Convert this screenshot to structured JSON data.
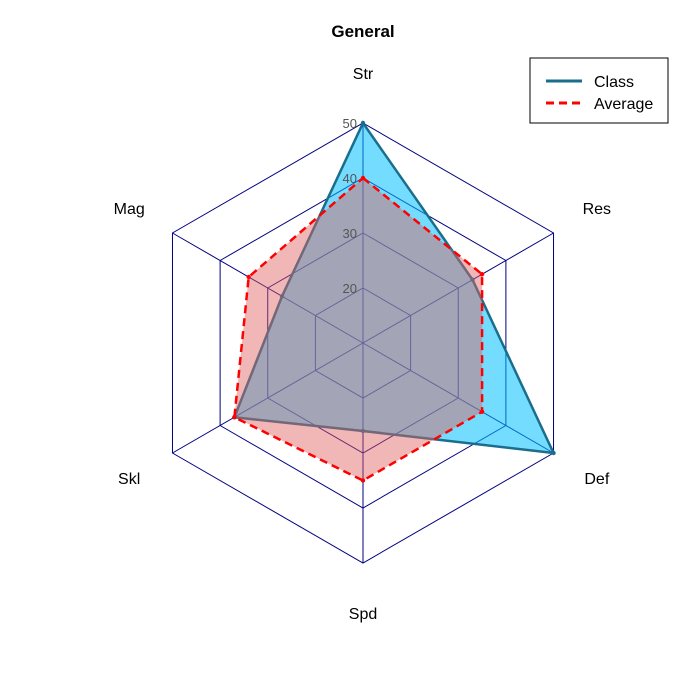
{
  "chart_data": {
    "type": "radar",
    "title": "General",
    "axes": [
      "Str",
      "Res",
      "Def",
      "Spd",
      "Skl",
      "Mag"
    ],
    "range": [
      10,
      50
    ],
    "ticks": [
      "20",
      "30",
      "40",
      "50"
    ],
    "legend_position": "top-right",
    "series": [
      {
        "name": "Class",
        "values": [
          50,
          33,
          50,
          26,
          37,
          27
        ],
        "line_color": "#1a6e8c",
        "fill_color": "#00bfff",
        "fill_opacity": 0.55,
        "dash": "solid"
      },
      {
        "name": "Average",
        "values": [
          40,
          35,
          35,
          35,
          37,
          34
        ],
        "line_color": "#ff0000",
        "fill_color": "#e06060",
        "fill_opacity": 0.45,
        "dash": "dashed"
      }
    ],
    "grid_color": "#000080"
  }
}
